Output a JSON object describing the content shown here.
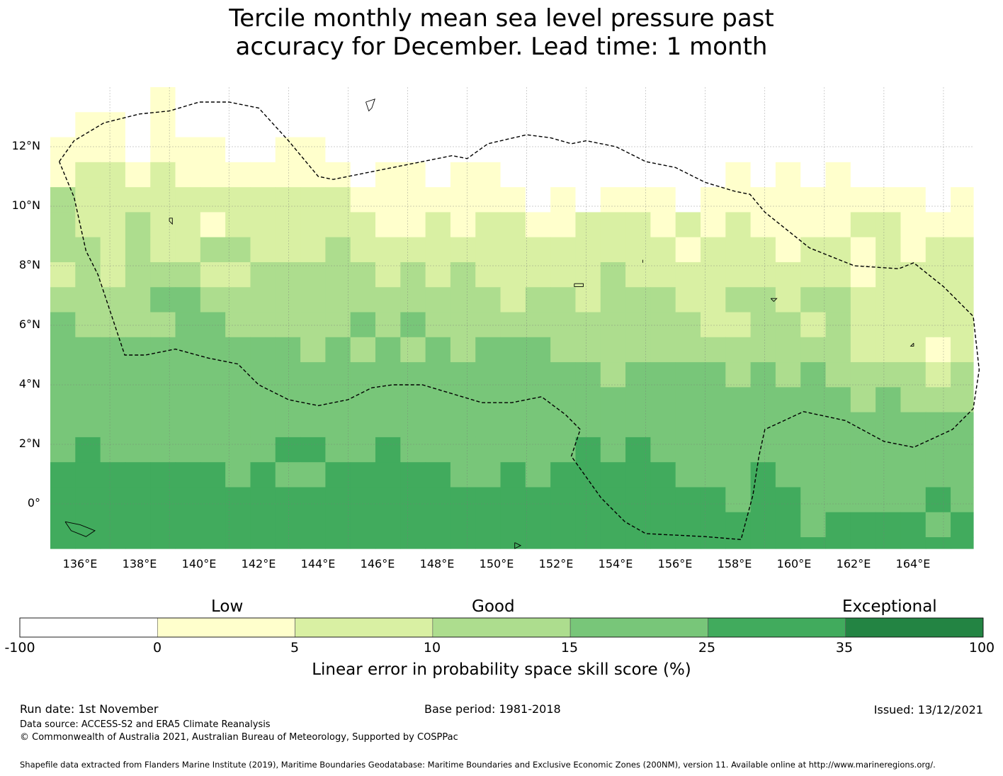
{
  "title": {
    "line1": "Tercile monthly mean sea level pressure past",
    "line2": "accuracy for December. Lead time: 1 month"
  },
  "map": {
    "lat_labels": [
      "12°N",
      "10°N",
      "8°N",
      "6°N",
      "4°N",
      "2°N",
      "0°"
    ],
    "lon_labels": [
      "136°E",
      "138°E",
      "140°E",
      "142°E",
      "144°E",
      "146°E",
      "148°E",
      "150°E",
      "152°E",
      "154°E",
      "156°E",
      "158°E",
      "160°E",
      "162°E",
      "164°E"
    ],
    "lat_range": [
      -1.5,
      14.0
    ],
    "lon_range": [
      134.0,
      165.0
    ],
    "grid_lats": [
      12,
      10,
      8,
      6,
      4,
      2,
      0
    ],
    "grid_lons": [
      136,
      138,
      140,
      142,
      144,
      146,
      148,
      150,
      152,
      154,
      156,
      158,
      160,
      162,
      164
    ],
    "eez_boundary": [
      [
        134.3,
        11.5
      ],
      [
        134.8,
        12.2
      ],
      [
        135.8,
        12.8
      ],
      [
        137.0,
        13.1
      ],
      [
        138.0,
        13.2
      ],
      [
        139.0,
        13.5
      ],
      [
        140.0,
        13.5
      ],
      [
        141.0,
        13.3
      ],
      [
        142.0,
        12.2
      ],
      [
        143.0,
        11.0
      ],
      [
        143.5,
        10.9
      ],
      [
        144.5,
        11.1
      ],
      [
        146.0,
        11.4
      ],
      [
        147.5,
        11.7
      ],
      [
        148.0,
        11.6
      ],
      [
        148.7,
        12.1
      ],
      [
        150.0,
        12.4
      ],
      [
        150.8,
        12.3
      ],
      [
        151.5,
        12.1
      ],
      [
        152.0,
        12.2
      ],
      [
        153.0,
        12.0
      ],
      [
        154.0,
        11.5
      ],
      [
        155.0,
        11.3
      ],
      [
        156.0,
        10.8
      ],
      [
        157.0,
        10.5
      ],
      [
        157.5,
        10.4
      ],
      [
        158.0,
        9.8
      ],
      [
        159.5,
        8.6
      ],
      [
        160.5,
        8.2
      ],
      [
        161.0,
        8.0
      ],
      [
        162.5,
        7.9
      ],
      [
        163.0,
        8.1
      ],
      [
        164.0,
        7.3
      ],
      [
        165.0,
        6.3
      ],
      [
        165.2,
        4.5
      ],
      [
        165.0,
        3.2
      ],
      [
        164.3,
        2.5
      ],
      [
        163.0,
        1.9
      ],
      [
        162.0,
        2.1
      ],
      [
        160.7,
        2.8
      ],
      [
        159.3,
        3.1
      ],
      [
        158.0,
        2.5
      ],
      [
        157.8,
        1.6
      ],
      [
        157.6,
        0.3
      ],
      [
        157.2,
        -1.2
      ],
      [
        156.0,
        -1.1
      ],
      [
        154.0,
        -1.0
      ],
      [
        153.3,
        -0.6
      ],
      [
        152.5,
        0.2
      ],
      [
        151.5,
        1.6
      ],
      [
        151.8,
        2.5
      ],
      [
        151.3,
        3.0
      ],
      [
        150.5,
        3.6
      ],
      [
        149.5,
        3.4
      ],
      [
        148.5,
        3.4
      ],
      [
        147.5,
        3.7
      ],
      [
        146.5,
        4.0
      ],
      [
        145.5,
        4.0
      ],
      [
        144.8,
        3.9
      ],
      [
        144.0,
        3.5
      ],
      [
        143.0,
        3.3
      ],
      [
        142.0,
        3.5
      ],
      [
        141.0,
        4.0
      ],
      [
        140.3,
        4.7
      ],
      [
        139.3,
        4.9
      ],
      [
        138.2,
        5.2
      ],
      [
        137.2,
        5.0
      ],
      [
        136.5,
        5.0
      ],
      [
        135.6,
        7.7
      ],
      [
        135.2,
        8.5
      ],
      [
        134.8,
        10.3
      ],
      [
        134.3,
        11.5
      ]
    ],
    "islands": [
      [
        [
          144.6,
          13.5
        ],
        [
          144.9,
          13.6
        ],
        [
          144.8,
          13.3
        ],
        [
          144.7,
          13.2
        ],
        [
          144.6,
          13.5
        ]
      ],
      [
        [
          138.0,
          9.6
        ],
        [
          138.1,
          9.6
        ],
        [
          138.1,
          9.4
        ],
        [
          138.0,
          9.5
        ],
        [
          138.0,
          9.6
        ]
      ],
      [
        [
          134.5,
          -0.6
        ],
        [
          135.0,
          -0.7
        ],
        [
          135.5,
          -0.9
        ],
        [
          135.2,
          -1.1
        ],
        [
          134.7,
          -0.9
        ],
        [
          134.5,
          -0.6
        ]
      ],
      [
        [
          149.6,
          -1.3
        ],
        [
          149.8,
          -1.4
        ],
        [
          149.6,
          -1.5
        ],
        [
          149.6,
          -1.3
        ]
      ],
      [
        [
          151.6,
          7.4
        ],
        [
          151.9,
          7.4
        ],
        [
          151.9,
          7.3
        ],
        [
          151.6,
          7.3
        ],
        [
          151.6,
          7.4
        ]
      ],
      [
        [
          158.2,
          6.9
        ],
        [
          158.4,
          6.9
        ],
        [
          158.3,
          6.8
        ],
        [
          158.2,
          6.9
        ]
      ],
      [
        [
          163.0,
          5.4
        ],
        [
          163.0,
          5.3
        ],
        [
          162.9,
          5.3
        ],
        [
          163.0,
          5.4
        ]
      ],
      [
        [
          153.9,
          8.2
        ],
        [
          153.9,
          8.1
        ],
        [
          153.9,
          8.2
        ]
      ]
    ]
  },
  "colorbar": {
    "categories": [
      "Low",
      "Good",
      "Exceptional"
    ],
    "ticks": [
      "-100",
      "0",
      "5",
      "10",
      "15",
      "25",
      "35",
      "100"
    ],
    "bins": [
      {
        "from": -100,
        "to": 0,
        "color": "#ffffff"
      },
      {
        "from": 0,
        "to": 5,
        "color": "#ffffcc"
      },
      {
        "from": 5,
        "to": 10,
        "color": "#d9f0a3"
      },
      {
        "from": 10,
        "to": 15,
        "color": "#addd8e"
      },
      {
        "from": 15,
        "to": 25,
        "color": "#78c679"
      },
      {
        "from": 25,
        "to": 35,
        "color": "#41ab5d"
      },
      {
        "from": 35,
        "to": 100,
        "color": "#238443"
      }
    ],
    "label": "Linear error in probability space skill score (%)"
  },
  "footer": {
    "run_date": "Run date: 1st November",
    "base_period": "Base period: 1981-2018",
    "issued": "Issued: 13/12/2021",
    "data_source": "Data source: ACCESS-S2 and ERA5 Climate Reanalysis",
    "copyright": "© Commonwealth of Australia 2021, Australian Bureau of Meteorology, Supported by COSPPac",
    "shapefile": "Shapefile data extracted from Flanders Marine Institute (2019), Maritime Boundaries Geodatabase: Maritime Boundaries and Exclusive Economic Zones (200NM), version 11. Available online at http://www.marineregions.org/."
  }
}
